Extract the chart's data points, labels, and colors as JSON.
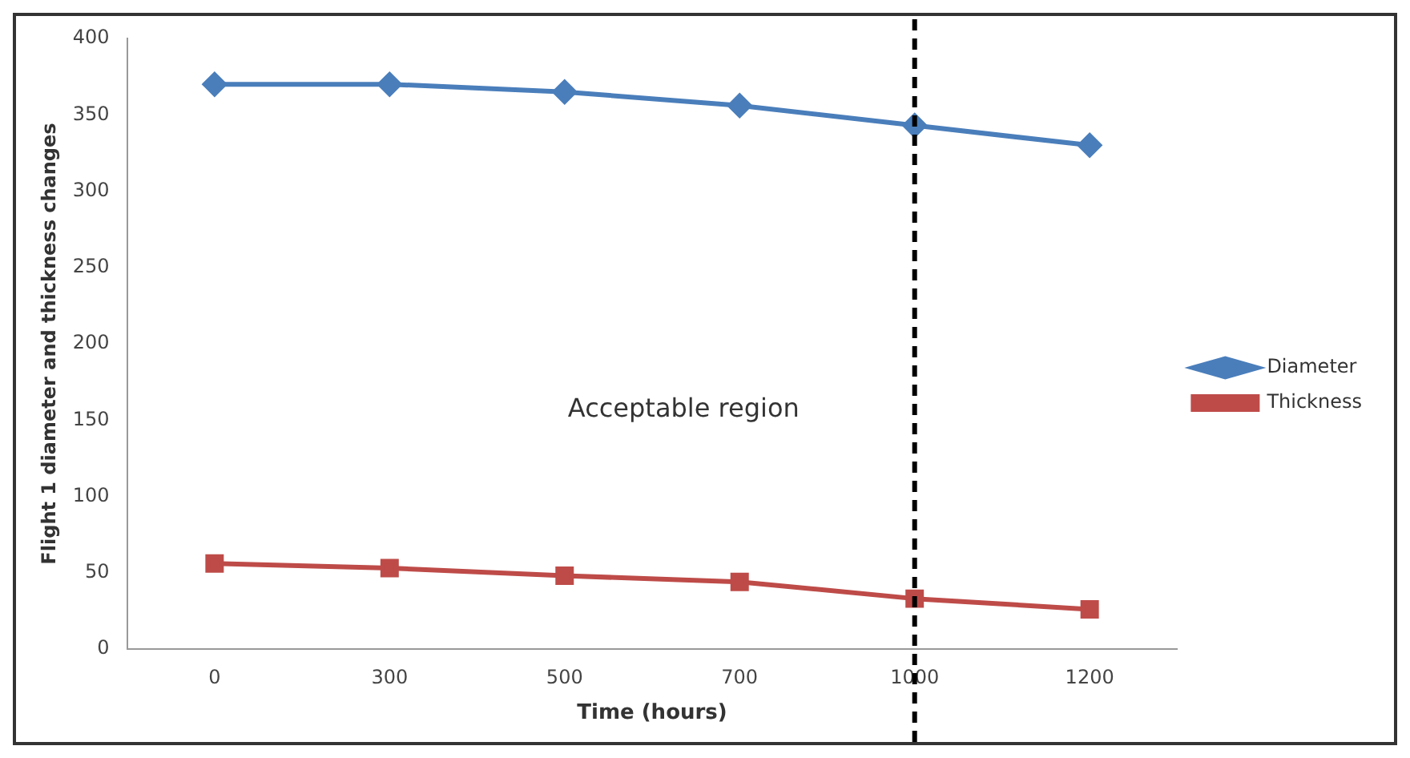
{
  "chart_data": {
    "type": "line",
    "xlabel": "Time (hours)",
    "ylabel": "Flight 1 diameter and thickness changes",
    "categories": [
      "0",
      "300",
      "500",
      "700",
      "1000",
      "1200"
    ],
    "series": [
      {
        "name": "Diameter",
        "color": "#4a7ebb",
        "marker": "diamond",
        "values": [
          370,
          370,
          365,
          356,
          343,
          330
        ]
      },
      {
        "name": "Thickness",
        "color": "#be4b48",
        "marker": "square",
        "values": [
          56,
          53,
          48,
          44,
          33,
          26
        ]
      }
    ],
    "ylim": [
      0,
      400
    ],
    "yticks": [
      0,
      50,
      100,
      150,
      200,
      250,
      300,
      350,
      400
    ],
    "grid": false,
    "legend": "right",
    "ref_lines": [
      {
        "axis": "x",
        "value": "1000",
        "color": "#000000",
        "line_style": "dashed"
      }
    ],
    "annotations": [
      "Acceptable region"
    ]
  }
}
